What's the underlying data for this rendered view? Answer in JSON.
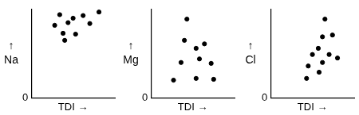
{
  "chart_data": [
    {
      "type": "scatter",
      "y_label": [
        "↑",
        "Na"
      ],
      "x_label": "TDI →",
      "color": "#000000",
      "marker": "circle",
      "x": [
        3.4,
        5.0,
        6.2,
        8.1,
        2.8,
        4.4,
        7.0,
        3.8,
        5.3,
        4.0
      ],
      "values": [
        9.4,
        9.0,
        9.3,
        9.7,
        8.2,
        8.5,
        8.4,
        7.3,
        7.2,
        6.5
      ],
      "xlim": [
        0,
        10
      ],
      "ylim": [
        0,
        10
      ],
      "xticks": [
        0
      ],
      "yticks": [
        0
      ],
      "tick_labels": "y",
      "grid": false
    },
    {
      "type": "scatter",
      "y_label": [
        "↑",
        "Mg"
      ],
      "x_label": "TDI →",
      "color": "#000000",
      "marker": "circle",
      "x": [
        4.3,
        4.0,
        6.4,
        5.4,
        3.6,
        5.8,
        7.2,
        2.7,
        5.4,
        7.5
      ],
      "values": [
        8.9,
        6.5,
        6.1,
        5.6,
        4.0,
        4.4,
        3.9,
        2.0,
        2.2,
        2.1
      ],
      "xlim": [
        0,
        10
      ],
      "ylim": [
        0,
        10
      ],
      "xticks": [
        0
      ],
      "yticks": [
        0
      ],
      "tick_labels": "y",
      "grid": false
    },
    {
      "type": "scatter",
      "y_label": [
        "↑",
        "Cl"
      ],
      "x_label": "TDI →",
      "color": "#000000",
      "marker": "circle",
      "x": [
        6.5,
        6.2,
        7.4,
        5.7,
        5.0,
        7.0,
        8.0,
        4.5,
        6.2,
        5.8,
        4.3
      ],
      "values": [
        8.9,
        6.9,
        7.1,
        5.6,
        4.9,
        4.9,
        4.5,
        3.6,
        4.0,
        2.9,
        2.2
      ],
      "xlim": [
        0,
        10
      ],
      "ylim": [
        0,
        10
      ],
      "xticks": [
        0
      ],
      "yticks": [
        0
      ],
      "tick_labels": "y",
      "grid": false
    }
  ]
}
